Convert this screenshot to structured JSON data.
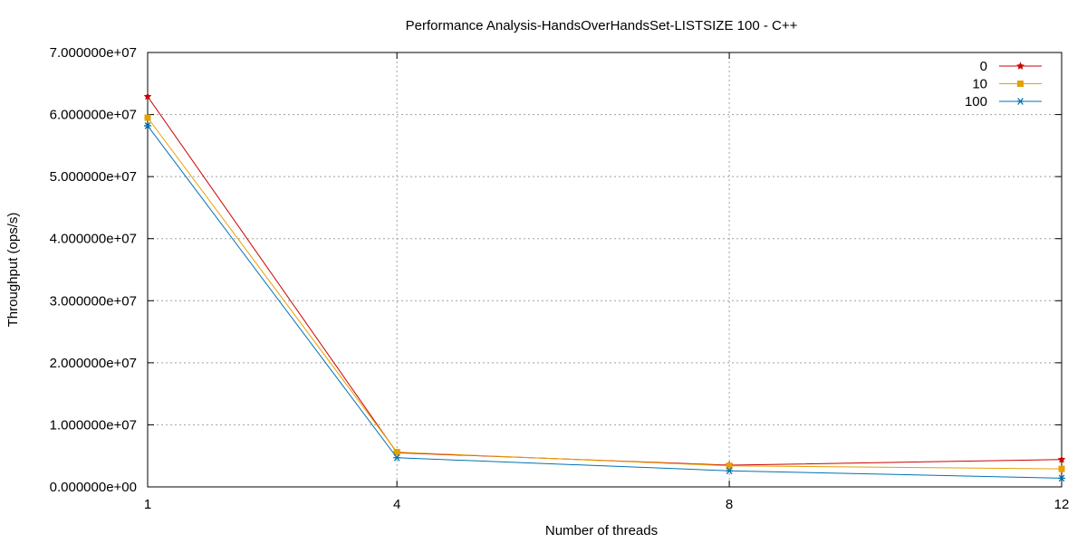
{
  "chart_data": {
    "type": "line",
    "title": "Performance Analysis-HandsOverHandsSet-LISTSIZE 100 - C++",
    "xlabel": "Number of threads",
    "ylabel": "Throughput (ops/s)",
    "x": [
      1,
      4,
      8,
      12
    ],
    "x_ticks": [
      1,
      4,
      8,
      12
    ],
    "x_tick_labels": [
      "1",
      "4",
      "8",
      "12"
    ],
    "xlim": [
      1,
      12
    ],
    "ylim": [
      0,
      70000000
    ],
    "y_ticks": [
      0,
      10000000,
      20000000,
      30000000,
      40000000,
      50000000,
      60000000,
      70000000
    ],
    "y_tick_labels": [
      "0.000000e+00",
      "1.000000e+07",
      "2.000000e+07",
      "3.000000e+07",
      "4.000000e+07",
      "5.000000e+07",
      "6.000000e+07",
      "7.000000e+07"
    ],
    "grid": true,
    "legend_position": "top-right",
    "series": [
      {
        "name": "0",
        "values": [
          62900000,
          5500000,
          3500000,
          4400000
        ],
        "color": "#cc0000",
        "marker": "star"
      },
      {
        "name": "10",
        "values": [
          59500000,
          5600000,
          3400000,
          2900000
        ],
        "color": "#e6a000",
        "marker": "square"
      },
      {
        "name": "100",
        "values": [
          58200000,
          4700000,
          2600000,
          1400000
        ],
        "color": "#0072b2",
        "marker": "asterisk"
      }
    ]
  }
}
